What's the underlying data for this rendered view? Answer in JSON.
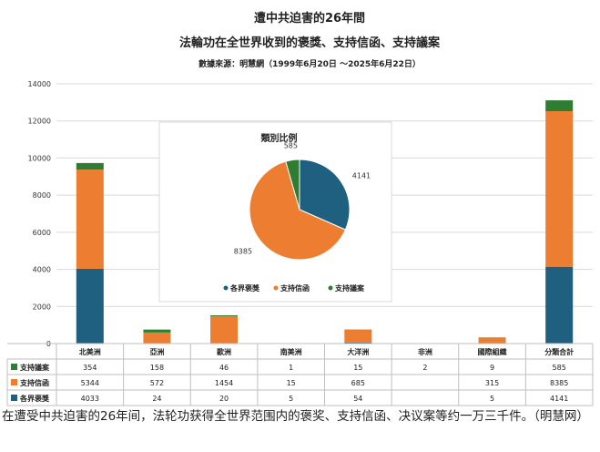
{
  "chart_data": [
    {
      "type": "bar",
      "stacked": true,
      "title": "遭中共迫害的26年間",
      "subtitle": "法輪功在全世界收到的褒獎、支持信函、支持議案",
      "source": "數據來源：明慧網（1999年6月20日 ～2025年6月22日）",
      "categories": [
        "北美洲",
        "亞洲",
        "歐洲",
        "南美洲",
        "大洋洲",
        "非洲",
        "國際組織",
        "分類合計"
      ],
      "ylim": [
        0,
        14000
      ],
      "yticks": [
        0,
        2000,
        4000,
        6000,
        8000,
        10000,
        12000,
        14000
      ],
      "grid": true,
      "legend_position": "table-left",
      "series": [
        {
          "name": "各界褒獎",
          "color": "#1f5f80",
          "values": [
            4033,
            24,
            20,
            5,
            54,
            null,
            5,
            4141
          ],
          "labels": [
            "4033",
            "24",
            "20",
            "5",
            "54",
            "",
            "5",
            "4141"
          ]
        },
        {
          "name": "支持信函",
          "color": "#ed7d31",
          "values": [
            5344,
            572,
            1454,
            15,
            685,
            null,
            315,
            8385
          ],
          "labels": [
            "5344",
            "572",
            "1454",
            "15",
            "685",
            "",
            "315",
            "8385"
          ]
        },
        {
          "name": "支持議案",
          "color": "#2e7d32",
          "values": [
            354,
            158,
            46,
            1,
            15,
            2,
            9,
            585
          ],
          "labels": [
            "354",
            "158",
            "46",
            "1",
            "15",
            "2",
            "9",
            "585"
          ]
        }
      ]
    },
    {
      "type": "pie",
      "title": "類別比例",
      "categories": [
        "各界褒獎",
        "支持信函",
        "支持議案"
      ],
      "values": [
        4141,
        8385,
        585
      ],
      "colors": [
        "#1f5f80",
        "#ed7d31",
        "#2e7d32"
      ],
      "legend_position": "bottom"
    }
  ],
  "caption": "在遭受中共迫害的26年间，法轮功获得全世界范围内的褒奖、支持信函、决议案等约一万三千件。（明慧网）"
}
